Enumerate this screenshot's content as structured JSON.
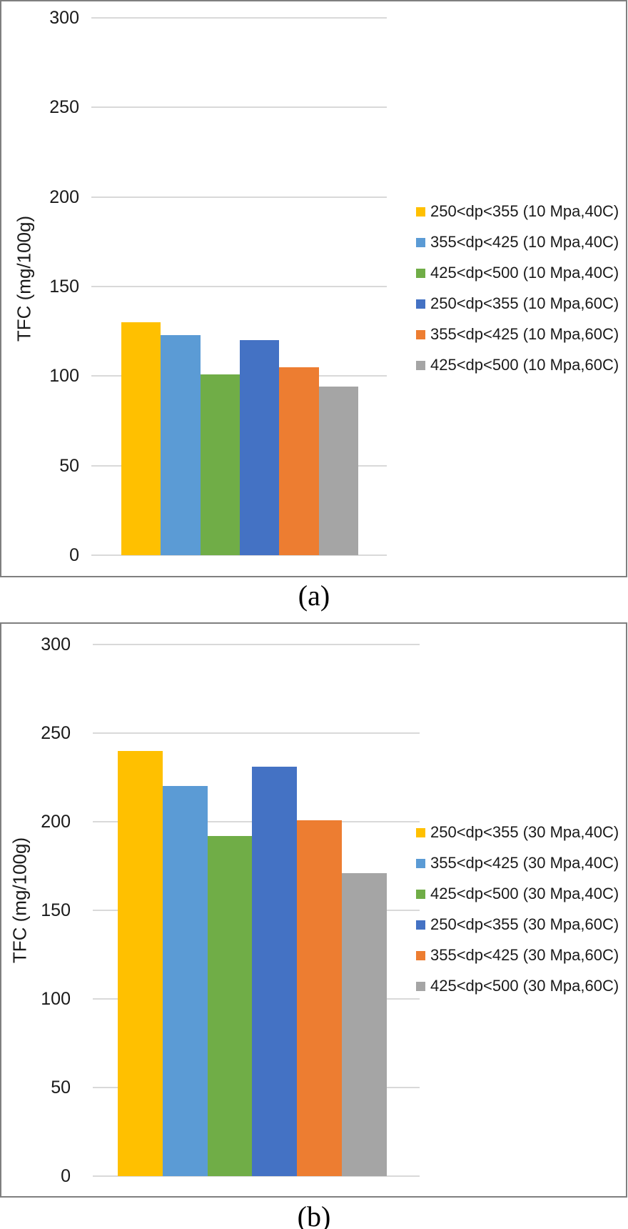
{
  "page": {
    "background": "#FFFFFF"
  },
  "styles": {
    "frame_color": "#7F7F7F",
    "grid_color": "#D9D9D9",
    "text_color": "#1A1A1A"
  },
  "chart_data": [
    {
      "type": "bar",
      "caption": "(a)",
      "title": "",
      "xlabel": "",
      "ylabel": "TFC (mg/100g)",
      "ylim": [
        0,
        300
      ],
      "ytick_step": 50,
      "ytick_labels": [
        "0",
        "50",
        "100",
        "150",
        "200",
        "250",
        "300"
      ],
      "grid": true,
      "legend_position": "right",
      "categories": [
        ""
      ],
      "series": [
        {
          "name": "250<dp<355 (10 Mpa,40C)",
          "color": "#FFC000",
          "values": [
            130
          ]
        },
        {
          "name": "355<dp<425 (10 Mpa,40C)",
          "color": "#5B9BD5",
          "values": [
            123
          ]
        },
        {
          "name": "425<dp<500 (10 Mpa,40C)",
          "color": "#70AD47",
          "values": [
            101
          ]
        },
        {
          "name": "250<dp<355 (10 Mpa,60C)",
          "color": "#4472C4",
          "values": [
            120
          ]
        },
        {
          "name": "355<dp<425 (10 Mpa,60C)",
          "color": "#ED7D31",
          "values": [
            105
          ]
        },
        {
          "name": "425<dp<500 (10 Mpa,60C)",
          "color": "#A5A5A5",
          "values": [
            94
          ]
        }
      ]
    },
    {
      "type": "bar",
      "caption": "(b)",
      "title": "",
      "xlabel": "",
      "ylabel": "TFC (mg/100g)",
      "ylim": [
        0,
        300
      ],
      "ytick_step": 50,
      "ytick_labels": [
        "0",
        "50",
        "100",
        "150",
        "200",
        "250",
        "300"
      ],
      "grid": true,
      "legend_position": "right",
      "categories": [
        ""
      ],
      "series": [
        {
          "name": "250<dp<355 (30 Mpa,40C)",
          "color": "#FFC000",
          "values": [
            240
          ]
        },
        {
          "name": "355<dp<425 (30 Mpa,40C)",
          "color": "#5B9BD5",
          "values": [
            220
          ]
        },
        {
          "name": "425<dp<500 (30 Mpa,40C)",
          "color": "#70AD47",
          "values": [
            192
          ]
        },
        {
          "name": "250<dp<355 (30 Mpa,60C)",
          "color": "#4472C4",
          "values": [
            231
          ]
        },
        {
          "name": "355<dp<425 (30 Mpa,60C)",
          "color": "#ED7D31",
          "values": [
            201
          ]
        },
        {
          "name": "425<dp<500 (30 Mpa,60C)",
          "color": "#A5A5A5",
          "values": [
            171
          ]
        }
      ]
    }
  ]
}
